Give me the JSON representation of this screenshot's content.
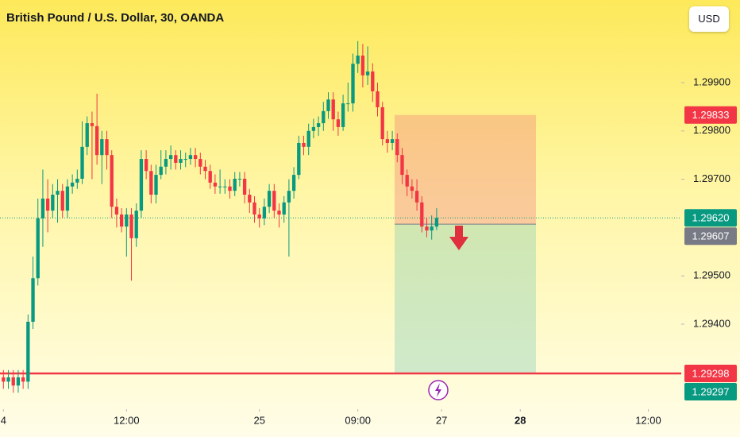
{
  "header": {
    "title": "British Pound / U.S. Dollar, 30, OANDA",
    "currency_button": "USD"
  },
  "chart_data": {
    "type": "candlestick",
    "up_color": "#089981",
    "down_color": "#f23645",
    "xlim": [
      -0.7,
      137.7
    ],
    "ylim": [
      1.29224,
      1.30071
    ],
    "xticks": [
      {
        "value": 0,
        "label": "4"
      },
      {
        "value": 25,
        "label": "12:00"
      },
      {
        "value": 52,
        "label": "25"
      },
      {
        "value": 72,
        "label": "09:00"
      },
      {
        "value": 89,
        "label": "27"
      },
      {
        "value": 105,
        "label": "28"
      },
      {
        "value": 131,
        "label": "12:00"
      }
    ],
    "yticks": [
      {
        "value": 1.299,
        "label": "1.29900"
      },
      {
        "value": 1.298,
        "label": "1.29800"
      },
      {
        "value": 1.297,
        "label": "1.29700"
      },
      {
        "value": 1.295,
        "label": "1.29500"
      },
      {
        "value": 1.294,
        "label": "1.29400"
      }
    ],
    "open": [
      1.2929,
      1.29281,
      1.2929,
      1.29273,
      1.2929,
      1.29281,
      1.29405,
      1.29495,
      1.29619,
      1.2966,
      1.29635,
      1.29668,
      1.29676,
      1.29635,
      1.29685,
      1.29693,
      1.29701,
      1.29767,
      1.29816,
      1.2981,
      1.2975,
      1.29783,
      1.2975,
      1.29643,
      1.29627,
      1.29602,
      1.29627,
      1.29578,
      1.29635,
      1.29742,
      1.29717,
      1.29668,
      1.29709,
      1.29726,
      1.29742,
      1.2975,
      1.29734,
      1.29742,
      1.29742,
      1.2975,
      1.29742,
      1.29726,
      1.29717,
      1.29693,
      1.29685,
      1.29685,
      1.29685,
      1.29676,
      1.29701,
      1.29701,
      1.29668,
      1.29652,
      1.29627,
      1.29619,
      1.29643,
      1.29676,
      1.29635,
      1.29627,
      1.29652,
      1.29676,
      1.29709,
      1.29775,
      1.29767,
      1.298,
      1.29808,
      1.29816,
      1.29841,
      1.29865,
      1.29824,
      1.29808,
      1.29857,
      1.29857,
      1.29939,
      1.29956,
      1.29915,
      1.29923,
      1.29882,
      1.29849,
      1.29783,
      1.29775,
      1.29783,
      1.2975,
      1.29709,
      1.29685,
      1.29676,
      1.29652,
      1.29602,
      1.29594,
      1.29602
    ],
    "high": [
      1.29305,
      1.29305,
      1.29305,
      1.29305,
      1.29305,
      1.2942,
      1.2954,
      1.2966,
      1.2972,
      1.297,
      1.2969,
      1.297,
      1.2969,
      1.297,
      1.2971,
      1.2972,
      1.2982,
      1.2983,
      1.2984,
      1.29877,
      1.298,
      1.298,
      1.2976,
      1.2966,
      1.2964,
      1.2964,
      1.2964,
      1.2965,
      1.2976,
      1.2976,
      1.2973,
      1.2973,
      1.2976,
      1.2976,
      1.2977,
      1.2976,
      1.2976,
      1.29755,
      1.29765,
      1.29765,
      1.29755,
      1.2974,
      1.2973,
      1.2971,
      1.2972,
      1.297,
      1.297,
      1.29715,
      1.29715,
      1.29715,
      1.2968,
      1.29665,
      1.2964,
      1.2966,
      1.2969,
      1.2969,
      1.2965,
      1.29665,
      1.297,
      1.29725,
      1.2979,
      1.2979,
      1.29815,
      1.29825,
      1.2983,
      1.2986,
      1.2988,
      1.2988,
      1.2984,
      1.29875,
      1.299,
      1.2996,
      1.29986,
      1.2998,
      1.29975,
      1.2994,
      1.299,
      1.2986,
      1.298,
      1.298,
      1.29795,
      1.29765,
      1.2972,
      1.297,
      1.297,
      1.29665,
      1.2962,
      1.29625,
      1.2964
    ],
    "low": [
      1.29266,
      1.29266,
      1.29258,
      1.29258,
      1.29266,
      1.29266,
      1.2939,
      1.2948,
      1.2956,
      1.2959,
      1.2962,
      1.2961,
      1.2962,
      1.2962,
      1.2967,
      1.2968,
      1.2969,
      1.2975,
      1.297,
      1.2973,
      1.2969,
      1.2972,
      1.2962,
      1.296,
      1.2959,
      1.2954,
      1.2949,
      1.2956,
      1.2962,
      1.297,
      1.2965,
      1.2965,
      1.297,
      1.2971,
      1.2972,
      1.2972,
      1.2972,
      1.29725,
      1.2973,
      1.29725,
      1.2971,
      1.297,
      1.2968,
      1.2967,
      1.2967,
      1.2967,
      1.2966,
      1.29665,
      1.29685,
      1.2965,
      1.2963,
      1.2961,
      1.296,
      1.29605,
      1.2963,
      1.2962,
      1.296,
      1.2961,
      1.2954,
      1.2966,
      1.297,
      1.2975,
      1.2975,
      1.29785,
      1.2979,
      1.298,
      1.29825,
      1.298,
      1.2979,
      1.298,
      1.2984,
      1.2984,
      1.2992,
      1.2989,
      1.29895,
      1.2986,
      1.2983,
      1.2977,
      1.29755,
      1.2976,
      1.29735,
      1.2969,
      1.29665,
      1.2966,
      1.29635,
      1.2959,
      1.2958,
      1.29575,
      1.29595
    ],
    "close": [
      1.29281,
      1.2929,
      1.29273,
      1.2929,
      1.29281,
      1.29405,
      1.29495,
      1.29619,
      1.2966,
      1.29635,
      1.29668,
      1.29676,
      1.29635,
      1.29685,
      1.29693,
      1.29701,
      1.29767,
      1.29816,
      1.2981,
      1.2975,
      1.29783,
      1.2975,
      1.29643,
      1.29627,
      1.29602,
      1.29627,
      1.29578,
      1.29635,
      1.29742,
      1.29717,
      1.29668,
      1.29709,
      1.29726,
      1.29742,
      1.2975,
      1.29734,
      1.29742,
      1.29742,
      1.2975,
      1.29742,
      1.29726,
      1.29717,
      1.29693,
      1.29685,
      1.29685,
      1.29685,
      1.29676,
      1.29701,
      1.29701,
      1.29668,
      1.29652,
      1.29627,
      1.29619,
      1.29643,
      1.29676,
      1.29635,
      1.29627,
      1.29652,
      1.29676,
      1.29709,
      1.29775,
      1.29767,
      1.298,
      1.29808,
      1.29816,
      1.29841,
      1.29865,
      1.29824,
      1.29808,
      1.29857,
      1.29857,
      1.29939,
      1.29956,
      1.29915,
      1.29923,
      1.29882,
      1.29849,
      1.29783,
      1.29775,
      1.29783,
      1.2975,
      1.29709,
      1.29685,
      1.29676,
      1.29652,
      1.29602,
      1.29594,
      1.29602,
      1.2962
    ],
    "position": {
      "entry": 1.29607,
      "stop": 1.29833,
      "target": 1.29298
    },
    "support_line": {
      "value": 1.29298,
      "color": "#f23645"
    },
    "last_price_line": {
      "value": 1.2962,
      "color": "#089981"
    },
    "price_tags": [
      {
        "value": 1.29833,
        "label": "1.29833",
        "color": "#f23645"
      },
      {
        "value": 1.2962,
        "label": "1.29620",
        "color": "#089981"
      },
      {
        "value": 1.29607,
        "label": "1.29607",
        "color": "#787b86"
      },
      {
        "value": 1.29298,
        "label": "1.29298",
        "color": "#f23645"
      },
      {
        "value": 1.29297,
        "label": "1.29297",
        "color": "#089981"
      }
    ]
  }
}
